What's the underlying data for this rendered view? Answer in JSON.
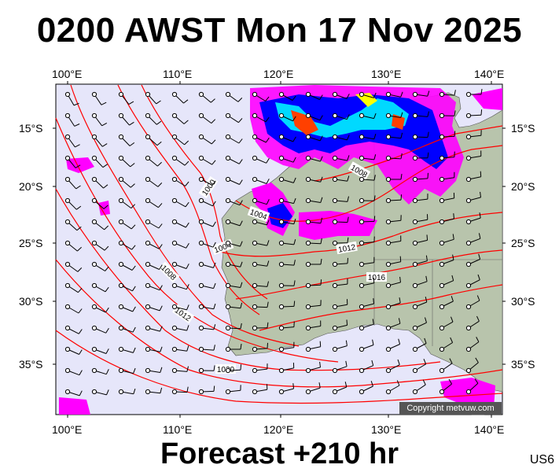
{
  "title": "0200 AWST Mon 17 Nov 2025",
  "footer": "Forecast +210 hr",
  "code": "US6",
  "copyright": "Copyright metvuw.com",
  "axes": {
    "lon_labels": [
      "100°E",
      "110°E",
      "120°E",
      "130°E",
      "140°E"
    ],
    "lat_labels": [
      "15°S",
      "20°S",
      "25°S",
      "30°S",
      "35°S"
    ]
  },
  "isobar_labels": [
    "1000",
    "1004",
    "1004",
    "1008",
    "1008",
    "1012",
    "1012",
    "1016",
    "1016",
    "1020"
  ],
  "colors": {
    "ocean": "#e6e6fa",
    "land": "#b8c4ac",
    "isobar": "#ff0000",
    "rain_light": "#ff00ff",
    "rain_mid": "#0000ff",
    "rain_heavy": "#00ffff",
    "rain_extreme": "#ff4000"
  }
}
